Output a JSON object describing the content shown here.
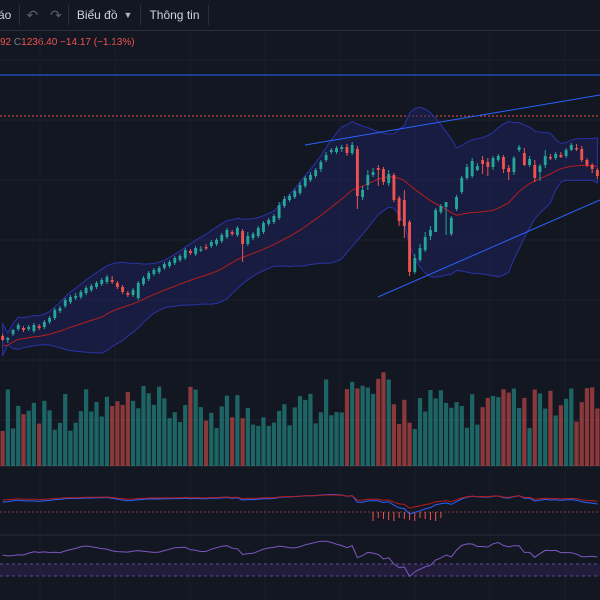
{
  "toolbar": {
    "cut_label": "áo",
    "undo_icon": "undo-icon",
    "redo_icon": "redo-icon",
    "chart_label": "Biểu đồ",
    "info_label": "Thông tin"
  },
  "legend": {
    "partial_value": "92",
    "close_prefix": "C",
    "close_value": "1236.40",
    "change": "−14.17",
    "change_pct": "(−1.13%)"
  },
  "colors": {
    "up": "#26a69a",
    "down": "#ef5350",
    "band": "#2933a8",
    "trendline": "#2962ff",
    "ma": "#b71c1c"
  },
  "chart_data": {
    "type": "candlestick",
    "candles": [
      [
        336,
        340,
        334,
        341
      ],
      [
        340,
        338,
        337,
        343
      ],
      [
        334,
        330,
        329,
        336
      ],
      [
        329,
        325,
        323,
        331
      ],
      [
        328,
        330,
        326,
        332
      ],
      [
        329,
        327,
        325,
        331
      ],
      [
        331,
        325,
        323,
        333
      ],
      [
        326,
        328,
        324,
        330
      ],
      [
        327,
        322,
        320,
        329
      ],
      [
        322,
        318,
        316,
        324
      ],
      [
        318,
        310,
        308,
        320
      ],
      [
        311,
        308,
        306,
        313
      ],
      [
        306,
        300,
        298,
        308
      ],
      [
        302,
        297,
        295,
        304
      ],
      [
        298,
        296,
        293,
        300
      ],
      [
        297,
        292,
        290,
        299
      ],
      [
        293,
        288,
        286,
        295
      ],
      [
        290,
        286,
        284,
        292
      ],
      [
        287,
        283,
        281,
        289
      ],
      [
        284,
        280,
        278,
        286
      ],
      [
        282,
        277,
        275,
        284
      ],
      [
        280,
        282,
        276,
        284
      ],
      [
        283,
        287,
        281,
        289
      ],
      [
        287,
        292,
        285,
        294
      ],
      [
        293,
        295,
        291,
        297
      ],
      [
        295,
        290,
        288,
        297
      ],
      [
        298,
        283,
        281,
        300
      ],
      [
        284,
        278,
        276,
        286
      ],
      [
        279,
        273,
        271,
        281
      ],
      [
        274,
        270,
        268,
        276
      ],
      [
        272,
        268,
        266,
        274
      ],
      [
        268,
        264,
        262,
        270
      ],
      [
        266,
        262,
        260,
        268
      ],
      [
        263,
        258,
        256,
        265
      ],
      [
        260,
        256,
        254,
        262
      ],
      [
        258,
        250,
        248,
        260
      ],
      [
        251,
        253,
        249,
        255
      ],
      [
        254,
        248,
        246,
        256
      ],
      [
        250,
        249,
        246,
        252
      ],
      [
        247,
        248,
        244,
        250
      ],
      [
        246,
        242,
        240,
        248
      ],
      [
        244,
        240,
        238,
        246
      ],
      [
        241,
        235,
        233,
        243
      ],
      [
        237,
        230,
        228,
        239
      ],
      [
        232,
        234,
        230,
        236
      ],
      [
        235,
        228,
        226,
        237
      ],
      [
        231,
        244,
        229,
        262
      ],
      [
        244,
        236,
        232,
        246
      ],
      [
        238,
        234,
        232,
        240
      ],
      [
        236,
        228,
        226,
        238
      ],
      [
        232,
        223,
        221,
        234
      ],
      [
        224,
        220,
        218,
        226
      ],
      [
        222,
        216,
        214,
        224
      ],
      [
        218,
        205,
        202,
        220
      ],
      [
        206,
        199,
        196,
        208
      ],
      [
        200,
        196,
        194,
        202
      ],
      [
        197,
        191,
        189,
        199
      ],
      [
        193,
        185,
        182,
        195
      ],
      [
        186,
        178,
        176,
        188
      ],
      [
        180,
        175,
        172,
        182
      ],
      [
        176,
        170,
        168,
        178
      ],
      [
        169,
        162,
        160,
        172
      ],
      [
        160,
        155,
        152,
        162
      ],
      [
        152,
        150,
        148,
        154
      ],
      [
        152,
        148,
        146,
        154
      ],
      [
        149,
        147,
        145,
        152
      ],
      [
        147,
        153,
        144,
        156
      ],
      [
        153,
        145,
        142,
        155
      ],
      [
        149,
        196,
        146,
        209
      ],
      [
        197,
        190,
        186,
        200
      ],
      [
        185,
        175,
        170,
        190
      ],
      [
        175,
        172,
        168,
        177
      ],
      [
        168,
        170,
        165,
        186
      ],
      [
        169,
        182,
        167,
        185
      ],
      [
        183,
        174,
        170,
        186
      ],
      [
        175,
        200,
        173,
        202
      ],
      [
        198,
        221,
        196,
        226
      ],
      [
        200,
        226,
        190,
        238
      ],
      [
        222,
        272,
        220,
        276
      ],
      [
        272,
        258,
        254,
        274
      ],
      [
        260,
        248,
        244,
        262
      ],
      [
        250,
        237,
        232,
        252
      ],
      [
        236,
        230,
        226,
        240
      ],
      [
        232,
        210,
        208,
        232
      ],
      [
        212,
        206,
        204,
        214
      ],
      [
        207,
        202,
        204,
        235
      ],
      [
        234,
        218,
        216,
        236
      ],
      [
        209,
        197,
        195,
        211
      ],
      [
        192,
        178,
        176,
        194
      ],
      [
        178,
        167,
        164,
        180
      ],
      [
        176,
        161,
        158,
        178
      ],
      [
        170,
        166,
        163,
        171
      ],
      [
        160,
        164,
        156,
        174
      ],
      [
        162,
        167,
        158,
        176
      ],
      [
        167,
        158,
        156,
        170
      ],
      [
        160,
        156,
        154,
        162
      ],
      [
        157,
        169,
        155,
        173
      ],
      [
        168,
        172,
        165,
        180
      ],
      [
        172,
        158,
        156,
        175
      ],
      [
        150,
        147,
        145,
        152
      ],
      [
        153,
        165,
        148,
        166
      ],
      [
        165,
        159,
        156,
        167
      ],
      [
        165,
        178,
        160,
        182
      ],
      [
        172,
        166,
        164,
        181
      ],
      [
        165,
        156,
        150,
        168
      ],
      [
        157,
        158,
        154,
        160
      ],
      [
        158,
        154,
        152,
        160
      ],
      [
        155,
        157,
        152,
        158
      ],
      [
        156,
        150,
        148,
        158
      ],
      [
        150,
        145,
        143,
        151
      ],
      [
        148,
        148,
        144,
        151
      ],
      [
        149,
        160,
        146,
        162
      ],
      [
        160,
        165,
        158,
        167
      ],
      [
        165,
        169,
        163,
        173
      ],
      [
        170,
        176,
        168,
        179
      ]
    ]
  }
}
